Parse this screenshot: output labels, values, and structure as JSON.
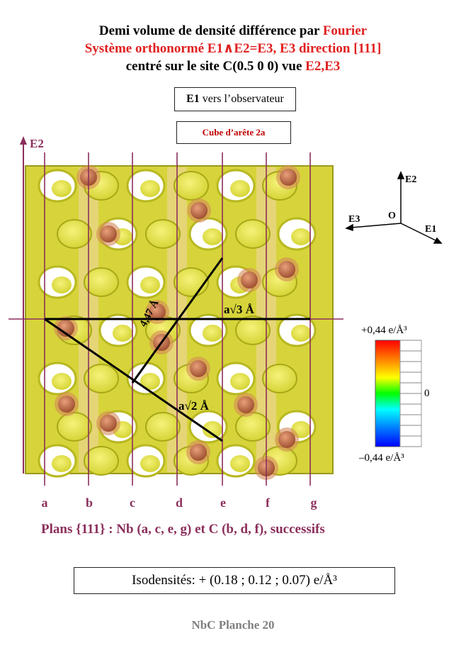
{
  "title": {
    "line1_prefix": "Demi volume de densité différence par ",
    "line1_red": "Fourier",
    "line2": "Système orthonormé E1∧E2=E3,     E3 direction [111]",
    "line3_prefix": "centré sur le site C(0.5 0 0)  vue ",
    "line3_red": "E2,E3"
  },
  "view_box": {
    "bold": "E1",
    "rest": " vers l’observateur"
  },
  "cube_label": "Cube d’arête 2a",
  "axes": {
    "vertical": "E2",
    "tri_e2": "E2",
    "tri_e3": "E3",
    "tri_e1": "E1",
    "origin": "O"
  },
  "distances": {
    "d1": "4,47 Å",
    "d2": "a√3 Å",
    "d3": "a√2 Å"
  },
  "planes": [
    "a",
    "b",
    "c",
    "d",
    "e",
    "f",
    "g"
  ],
  "planes_caption": "Plans {111} : Nb (a, c, e, g) et C (b, d, f), successifs",
  "colorbar": {
    "max": "+0,44 e/Å³",
    "zero": "0",
    "min": "–0,44 e/Å³"
  },
  "isodensities": "Isodensités: + (0.18 ; 0.12 ; 0.07) e/Å³",
  "footer": "NbC  Planche 20",
  "colors": {
    "title_red": "#e02020",
    "plane_lines": "#8b2f5b",
    "iso_yellow": "#e6e640",
    "atom": "#b05a3a"
  }
}
